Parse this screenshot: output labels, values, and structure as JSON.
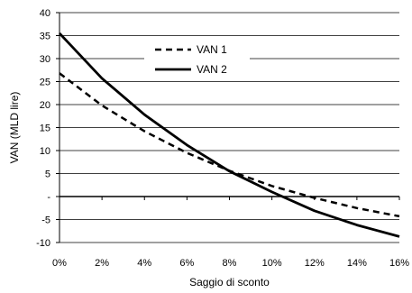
{
  "chart_data": {
    "type": "line",
    "xlabel": "Saggio di sconto",
    "ylabel": "VAN (MLD lire)",
    "xlim": [
      0,
      16
    ],
    "ylim": [
      -10,
      40
    ],
    "x_ticks": [
      0,
      2,
      4,
      6,
      8,
      10,
      12,
      14,
      16
    ],
    "x_tick_labels": [
      "0%",
      "2%",
      "4%",
      "6%",
      "8%",
      "10%",
      "12%",
      "14%",
      "16%"
    ],
    "y_ticks": [
      40,
      35,
      30,
      25,
      20,
      15,
      10,
      5,
      0,
      -5,
      -10
    ],
    "y_tick_labels": [
      "40",
      "35",
      "30",
      "25",
      "20",
      "15",
      "10",
      "5",
      "-",
      "-5",
      "-10"
    ],
    "grid": "horizontal",
    "legend_position": "top-center",
    "x": [
      0,
      2,
      4,
      6,
      8,
      10,
      12,
      14,
      16
    ],
    "series": [
      {
        "name": "VAN 1",
        "style": "dashed",
        "color": "#000000",
        "values": [
          26.8,
          19.8,
          14.2,
          9.5,
          5.6,
          2.3,
          -0.3,
          -2.5,
          -4.3
        ]
      },
      {
        "name": "VAN 2",
        "style": "solid",
        "color": "#000000",
        "values": [
          35.5,
          25.7,
          17.8,
          11.2,
          5.5,
          1.0,
          -3.1,
          -6.2,
          -8.7
        ]
      }
    ]
  }
}
